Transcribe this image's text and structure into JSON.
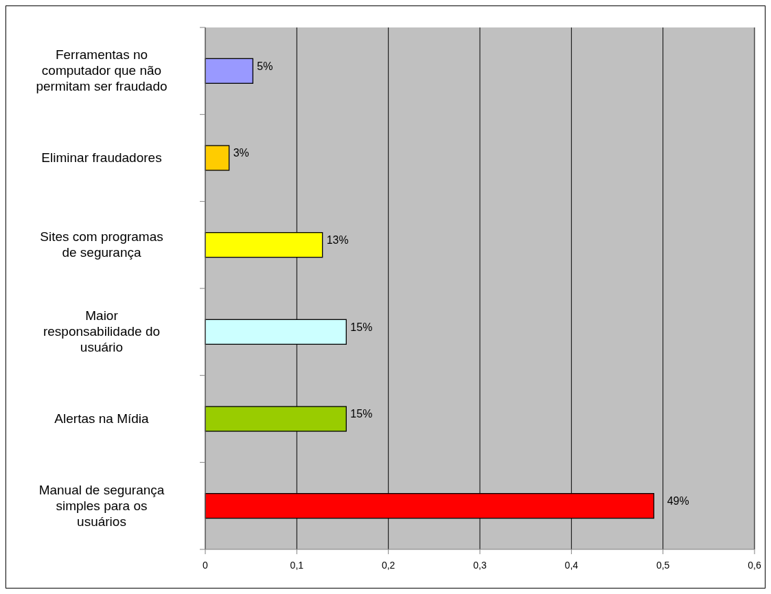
{
  "chart_data": {
    "type": "bar",
    "orientation": "horizontal",
    "categories": [
      "Ferramentas no computador que não permitam ser fraudado",
      "Eliminar fraudadores",
      "Sites com programas de segurança",
      "Maior responsabilidade do usuário",
      "Alertas na Mídia",
      "Manual de segurança simples para os usuários"
    ],
    "values": [
      0.052,
      0.026,
      0.128,
      0.154,
      0.154,
      0.49
    ],
    "colors": [
      "#9999ff",
      "#ffcc00",
      "#ffff00",
      "#ccffff",
      "#99cc00",
      "#ff0000"
    ],
    "value_labels": [
      "5%",
      "3%",
      "13%",
      "15%",
      "15%",
      "49%"
    ],
    "xlim": [
      0,
      0.6
    ],
    "xticks": [
      0,
      {
        "value": 0.1,
        "label": "0,1"
      },
      {
        "value": 0.2,
        "label": "0,2"
      },
      {
        "value": 0.3,
        "label": "0,3"
      },
      {
        "value": 0.4,
        "label": "0,4"
      },
      {
        "value": 0.5,
        "label": "0,5"
      },
      {
        "value": 0.6,
        "label": "0,6"
      }
    ],
    "grid": "x"
  }
}
